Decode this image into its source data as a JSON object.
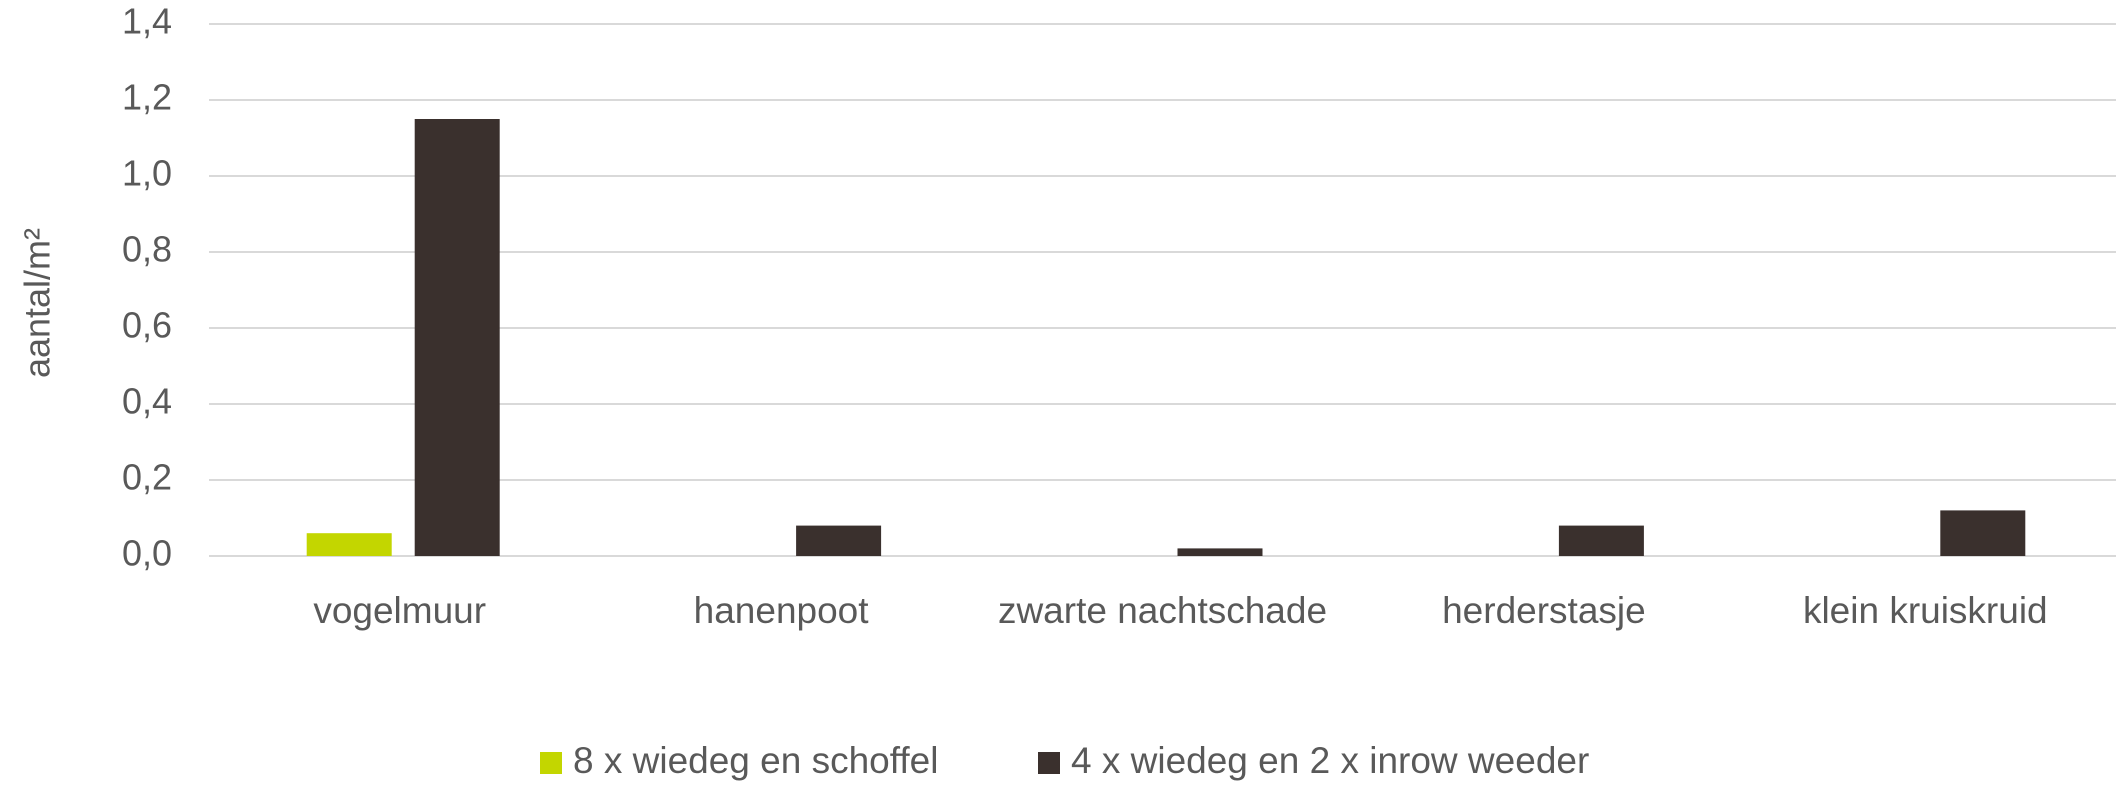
{
  "chart_data": {
    "type": "bar",
    "ylabel": "aantal/m²",
    "categories": [
      "vogelmuur",
      "hanenpoot",
      "zwarte nachtschade",
      "herderstasje",
      "klein kruiskruid"
    ],
    "series": [
      {
        "name": "8 x wiedeg en schoffel",
        "color": "#c3d600",
        "values": [
          0.06,
          0,
          0,
          0,
          0
        ]
      },
      {
        "name": "4 x wiedeg en 2 x inrow weeder",
        "color": "#3a302d",
        "values": [
          1.15,
          0.08,
          0.02,
          0.08,
          0.12
        ]
      }
    ],
    "ylim": [
      0,
      1.4
    ],
    "yticks": [
      {
        "value": 0,
        "label": "0,0"
      },
      {
        "value": 0.2,
        "label": "0,2"
      },
      {
        "value": 0.4,
        "label": "0,4"
      },
      {
        "value": 0.6,
        "label": "0,6"
      },
      {
        "value": 0.8,
        "label": "0,8"
      },
      {
        "value": 1.0,
        "label": "1,0"
      },
      {
        "value": 1.2,
        "label": "1,2"
      },
      {
        "value": 1.4,
        "label": "1,4"
      }
    ],
    "grid": true,
    "legend": "bottom"
  }
}
